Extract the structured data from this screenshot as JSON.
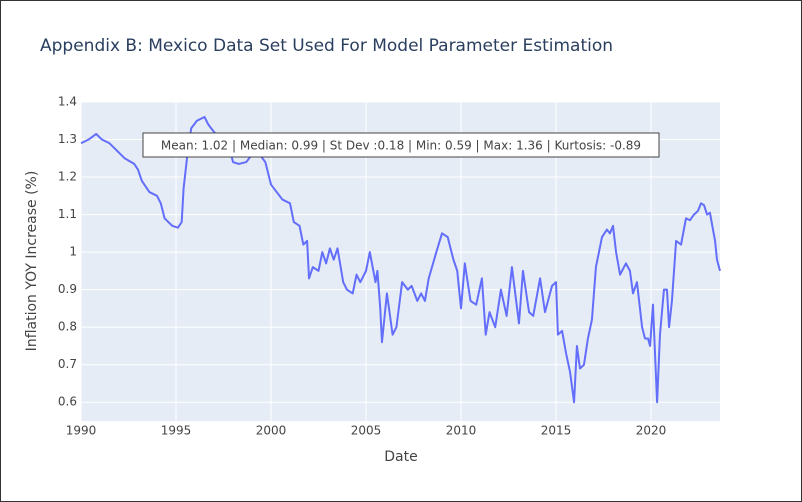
{
  "chart_data": {
    "type": "line",
    "title": "Appendix B: Mexico Data Set Used For Model Parameter Estimation",
    "x_label": "Date",
    "y_label": "Inflation YOY Increase (%)",
    "annotation": "Mean: 1.02 | Median: 0.99 | St Dev :0.18 | Min: 0.59 | Max: 1.36 | Kurtosis: -0.89",
    "color": "#636efa",
    "grid": true,
    "xlim": [
      1990,
      2023.63
    ],
    "ylim": [
      0.55,
      1.4
    ],
    "xticks": [
      1990,
      1995,
      2000,
      2005,
      2010,
      2015,
      2020
    ],
    "yticks": [
      0.6,
      0.7,
      0.8,
      0.9,
      1,
      1.1,
      1.2,
      1.3,
      1.4
    ],
    "x": [
      1990.0,
      1990.4,
      1990.8,
      1991.1,
      1991.5,
      1991.9,
      1992.3,
      1992.8,
      1993.0,
      1993.2,
      1993.6,
      1994.0,
      1994.2,
      1994.4,
      1994.8,
      1995.1,
      1995.3,
      1995.4,
      1995.6,
      1995.8,
      1996.1,
      1996.5,
      1996.7,
      1997.0,
      1997.4,
      1997.8,
      1998.0,
      1998.3,
      1998.7,
      1999.0,
      1999.4,
      1999.7,
      2000.0,
      2000.3,
      2000.6,
      2001.0,
      2001.2,
      2001.5,
      2001.7,
      2001.9,
      2002.0,
      2002.2,
      2002.5,
      2002.7,
      2002.9,
      2003.1,
      2003.3,
      2003.5,
      2003.8,
      2004.0,
      2004.3,
      2004.5,
      2004.7,
      2005.0,
      2005.2,
      2005.5,
      2005.6,
      2005.75,
      2005.84,
      2006.1,
      2006.4,
      2006.6,
      2006.9,
      2007.2,
      2007.4,
      2007.7,
      2007.9,
      2008.1,
      2008.3,
      2008.7,
      2009.0,
      2009.3,
      2009.6,
      2009.8,
      2010.0,
      2010.2,
      2010.5,
      2010.8,
      2011.1,
      2011.3,
      2011.5,
      2011.8,
      2012.1,
      2012.4,
      2012.68,
      2013.05,
      2013.26,
      2013.58,
      2013.8,
      2014.16,
      2014.42,
      2014.79,
      2015.0,
      2015.1,
      2015.32,
      2015.53,
      2015.74,
      2015.95,
      2016.1,
      2016.26,
      2016.47,
      2016.68,
      2016.89,
      2017.1,
      2017.42,
      2017.68,
      2017.84,
      2018.0,
      2018.16,
      2018.37,
      2018.68,
      2018.89,
      2019.05,
      2019.26,
      2019.53,
      2019.68,
      2019.84,
      2019.95,
      2020.1,
      2020.32,
      2020.47,
      2020.68,
      2020.84,
      2020.95,
      2021.1,
      2021.32,
      2021.58,
      2021.84,
      2022.05,
      2022.26,
      2022.47,
      2022.63,
      2022.79,
      2022.95,
      2023.1,
      2023.26,
      2023.37,
      2023.47,
      2023.63
    ],
    "values": [
      1.29,
      1.3,
      1.315,
      1.3,
      1.29,
      1.27,
      1.25,
      1.235,
      1.22,
      1.19,
      1.16,
      1.15,
      1.13,
      1.09,
      1.07,
      1.065,
      1.08,
      1.17,
      1.26,
      1.33,
      1.35,
      1.36,
      1.34,
      1.32,
      1.3,
      1.28,
      1.24,
      1.235,
      1.24,
      1.26,
      1.26,
      1.24,
      1.18,
      1.16,
      1.14,
      1.13,
      1.08,
      1.07,
      1.02,
      1.03,
      0.93,
      0.96,
      0.95,
      1.0,
      0.97,
      1.01,
      0.98,
      1.01,
      0.92,
      0.9,
      0.89,
      0.94,
      0.92,
      0.95,
      1.0,
      0.92,
      0.95,
      0.85,
      0.76,
      0.89,
      0.78,
      0.8,
      0.92,
      0.9,
      0.91,
      0.87,
      0.89,
      0.87,
      0.93,
      1.0,
      1.05,
      1.04,
      0.98,
      0.95,
      0.85,
      0.97,
      0.87,
      0.86,
      0.93,
      0.78,
      0.84,
      0.8,
      0.9,
      0.83,
      0.96,
      0.81,
      0.95,
      0.84,
      0.83,
      0.93,
      0.84,
      0.91,
      0.92,
      0.78,
      0.79,
      0.73,
      0.68,
      0.6,
      0.75,
      0.69,
      0.7,
      0.77,
      0.82,
      0.96,
      1.04,
      1.06,
      1.05,
      1.07,
      1.0,
      0.94,
      0.97,
      0.95,
      0.89,
      0.92,
      0.8,
      0.77,
      0.77,
      0.75,
      0.86,
      0.6,
      0.78,
      0.9,
      0.9,
      0.8,
      0.87,
      1.03,
      1.02,
      1.09,
      1.085,
      1.1,
      1.11,
      1.13,
      1.125,
      1.1,
      1.105,
      1.06,
      1.03,
      0.98,
      0.95
    ]
  }
}
